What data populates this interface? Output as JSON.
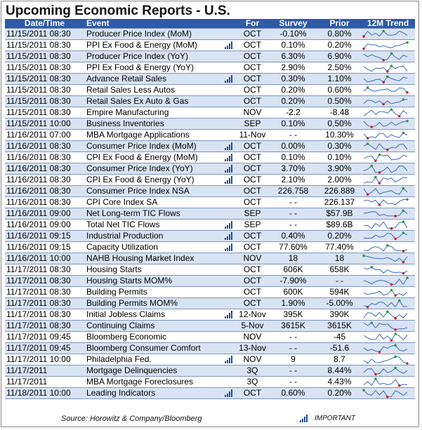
{
  "title": "Upcoming Economic Reports - U.S.",
  "columns": {
    "datetime": "Date/Time",
    "event": "Event",
    "for": "For",
    "survey": "Survey",
    "prior": "Prior",
    "trend": "12M Trend"
  },
  "colors": {
    "header_bg": "#2e5aa7",
    "row_shade": "#d8e3f3",
    "sparkline": "#3b6cc0",
    "spark_high": "#2a9d3a",
    "spark_low": "#d0222a",
    "important_icon": "#1f4e99"
  },
  "important_icon_name": "signal-bars-icon",
  "rows": [
    {
      "dt": "11/15/2011 08:30",
      "event": "Producer Price Index (MoM)",
      "important": false,
      "for": "OCT",
      "survey": "-0.10%",
      "prior": "0.80%"
    },
    {
      "dt": "11/15/2011 08:30",
      "event": "PPI Ex Food & Energy (MoM)",
      "important": true,
      "for": "OCT",
      "survey": "0.10%",
      "prior": "0.20%"
    },
    {
      "dt": "11/15/2011 08:30",
      "event": "Producer Price Index (YoY)",
      "important": false,
      "for": "OCT",
      "survey": "6.30%",
      "prior": "6.90%"
    },
    {
      "dt": "11/15/2011 08:30",
      "event": "PPI Ex Food & Energy (YoY)",
      "important": false,
      "for": "OCT",
      "survey": "2.90%",
      "prior": "2.50%"
    },
    {
      "dt": "11/15/2011 08:30",
      "event": "Advance Retail Sales",
      "important": true,
      "for": "OCT",
      "survey": "0.30%",
      "prior": "1.10%"
    },
    {
      "dt": "11/15/2011 08:30",
      "event": "Retail Sales Less Autos",
      "important": false,
      "for": "OCT",
      "survey": "0.20%",
      "prior": "0.60%"
    },
    {
      "dt": "11/15/2011 08:30",
      "event": "Retail Sales Ex Auto & Gas",
      "important": false,
      "for": "OCT",
      "survey": "0.20%",
      "prior": "0.50%"
    },
    {
      "dt": "11/15/2011 08:30",
      "event": "Empire Manufacturing",
      "important": false,
      "for": "NOV",
      "survey": "-2.2",
      "prior": "-8.48"
    },
    {
      "dt": "11/15/2011 10:00",
      "event": "Business Inventories",
      "important": false,
      "for": "SEP",
      "survey": "0.10%",
      "prior": "0.50%"
    },
    {
      "dt": "11/16/2011 07:00",
      "event": "MBA Mortgage Applications",
      "important": false,
      "for": "11-Nov",
      "survey": "- -",
      "prior": "10.30%"
    },
    {
      "dt": "11/16/2011 08:30",
      "event": "Consumer Price Index (MoM)",
      "important": true,
      "for": "OCT",
      "survey": "0.00%",
      "prior": "0.30%"
    },
    {
      "dt": "11/16/2011 08:30",
      "event": "CPI Ex Food & Energy (MoM)",
      "important": true,
      "for": "OCT",
      "survey": "0.10%",
      "prior": "0.10%"
    },
    {
      "dt": "11/16/2011 08:30",
      "event": "Consumer Price Index (YoY)",
      "important": true,
      "for": "OCT",
      "survey": "3.70%",
      "prior": "3.90%"
    },
    {
      "dt": "11/16/2011 08:30",
      "event": "CPI Ex Food & Energy (YoY)",
      "important": true,
      "for": "OCT",
      "survey": "2.10%",
      "prior": "2.00%"
    },
    {
      "dt": "11/16/2011 08:30",
      "event": "Consumer Price Index NSA",
      "important": false,
      "for": "OCT",
      "survey": "226.758",
      "prior": "226.889"
    },
    {
      "dt": "11/16/2011 08:30",
      "event": "CPI Core Index SA",
      "important": false,
      "for": "OCT",
      "survey": "- -",
      "prior": "226.137"
    },
    {
      "dt": "11/16/2011 09:00",
      "event": "Net Long-term TIC Flows",
      "important": false,
      "for": "SEP",
      "survey": "- -",
      "prior": "$57.9B"
    },
    {
      "dt": "11/16/2011 09:00",
      "event": "Total Net TIC Flows",
      "important": true,
      "for": "SEP",
      "survey": "- -",
      "prior": "$89.6B"
    },
    {
      "dt": "11/16/2011 09:15",
      "event": "Industrial Production",
      "important": true,
      "for": "OCT",
      "survey": "0.40%",
      "prior": "0.20%"
    },
    {
      "dt": "11/16/2011 09:15",
      "event": "Capacity Utilization",
      "important": true,
      "for": "OCT",
      "survey": "77.60%",
      "prior": "77.40%"
    },
    {
      "dt": "11/16/2011 10:00",
      "event": "NAHB Housing Market Index",
      "important": false,
      "for": "NOV",
      "survey": "18",
      "prior": "18"
    },
    {
      "dt": "11/17/2011 08:30",
      "event": "Housing Starts",
      "important": false,
      "for": "OCT",
      "survey": "606K",
      "prior": "658K"
    },
    {
      "dt": "11/17/2011 08:30",
      "event": "Housing Starts MOM%",
      "important": false,
      "for": "OCT",
      "survey": "-7.90%",
      "prior": "- -"
    },
    {
      "dt": "11/17/2011 08:30",
      "event": "Building Permits",
      "important": false,
      "for": "OCT",
      "survey": "600K",
      "prior": "594K"
    },
    {
      "dt": "11/17/2011 08:30",
      "event": "Building Permits MOM%",
      "important": false,
      "for": "OCT",
      "survey": "1.90%",
      "prior": "-5.00%"
    },
    {
      "dt": "11/17/2011 08:30",
      "event": "Initial Jobless Claims",
      "important": true,
      "for": "12-Nov",
      "survey": "395K",
      "prior": "390K"
    },
    {
      "dt": "11/17/2011 08:30",
      "event": "Continuing Claims",
      "important": false,
      "for": "5-Nov",
      "survey": "3615K",
      "prior": "3615K"
    },
    {
      "dt": "11/17/2011 09:45",
      "event": "Bloomberg Economic",
      "important": false,
      "for": "NOV",
      "survey": "- -",
      "prior": "-45"
    },
    {
      "dt": "11/17/2011 09:45",
      "event": "Bloomberg Consumer Comfort",
      "important": false,
      "for": "13-Nov",
      "survey": "- -",
      "prior": "-51.6"
    },
    {
      "dt": "11/17/2011 10:00",
      "event": "Philadelphia Fed.",
      "important": true,
      "for": "NOV",
      "survey": "9",
      "prior": "8.7"
    },
    {
      "dt": "11/17/2011",
      "event": "Mortgage Delinquencies",
      "important": false,
      "for": "3Q",
      "survey": "- -",
      "prior": "8.44%"
    },
    {
      "dt": "11/17/2011",
      "event": "MBA Mortgage Foreclosures",
      "important": false,
      "for": "3Q",
      "survey": "- -",
      "prior": "4.43%"
    },
    {
      "dt": "11/18/2011 10:00",
      "event": "Leading Indicators",
      "important": true,
      "for": "OCT",
      "survey": "0.60%",
      "prior": "0.20%"
    }
  ],
  "footer": {
    "source": "Source: Horowitz & Company/Bloomberg",
    "legend_label": "IMPORTANT"
  }
}
